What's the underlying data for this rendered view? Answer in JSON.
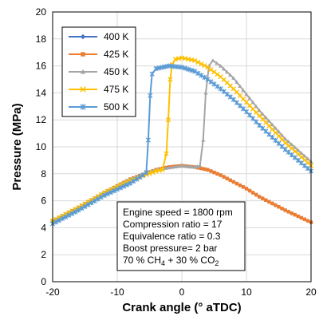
{
  "chart_data": {
    "type": "line",
    "xlabel": "Crank angle (° aTDC)",
    "ylabel": "Pressure (MPa)",
    "xlim": [
      -20,
      20
    ],
    "ylim": [
      0,
      20
    ],
    "xticks": [
      -20,
      -10,
      0,
      10,
      20
    ],
    "yticks": [
      0,
      2,
      4,
      6,
      8,
      10,
      12,
      14,
      16,
      18,
      20
    ],
    "grid": true,
    "legend_position": "top-left",
    "series": [
      {
        "name": "400 K",
        "color": "#4472c4",
        "marker": "diamond",
        "x": [
          -20,
          -16,
          -12,
          -8,
          -4,
          -2,
          0,
          2,
          4,
          6,
          8,
          10,
          12,
          16,
          20
        ],
        "y": [
          4.5,
          5.5,
          6.6,
          7.6,
          8.3,
          8.5,
          8.6,
          8.5,
          8.3,
          7.9,
          7.4,
          6.9,
          6.3,
          5.3,
          4.4
        ]
      },
      {
        "name": "425 K",
        "color": "#ed7d31",
        "marker": "square",
        "x": [
          -20,
          -16,
          -12,
          -8,
          -4,
          -2,
          0,
          2,
          4,
          6,
          8,
          10,
          12,
          16,
          20
        ],
        "y": [
          4.5,
          5.5,
          6.6,
          7.6,
          8.3,
          8.5,
          8.6,
          8.5,
          8.3,
          7.9,
          7.4,
          6.9,
          6.3,
          5.3,
          4.4
        ]
      },
      {
        "name": "450 K",
        "color": "#a5a5a5",
        "marker": "triangle",
        "x": [
          -20,
          -16,
          -12,
          -8,
          -4,
          0,
          2,
          2.8,
          3.3,
          3.7,
          4.2,
          4.8,
          6,
          8,
          10,
          12,
          16,
          20
        ],
        "y": [
          4.5,
          5.5,
          6.6,
          7.6,
          8.3,
          8.6,
          8.5,
          8.6,
          10.5,
          14.0,
          16.0,
          16.4,
          16.0,
          15.1,
          13.9,
          12.7,
          10.6,
          8.9
        ]
      },
      {
        "name": "475 K",
        "color": "#ffc000",
        "marker": "x",
        "x": [
          -20,
          -16,
          -12,
          -8,
          -4,
          -3,
          -2.4,
          -2.1,
          -1.8,
          -1.5,
          -1,
          0,
          2,
          4,
          6,
          8,
          10,
          12,
          16,
          20
        ],
        "y": [
          4.5,
          5.5,
          6.6,
          7.5,
          8.2,
          8.3,
          9.5,
          12.0,
          15.0,
          16.1,
          16.5,
          16.6,
          16.4,
          15.9,
          15.2,
          14.3,
          13.3,
          12.3,
          10.3,
          8.6
        ]
      },
      {
        "name": "500 K",
        "color": "#5b9bd5",
        "marker": "star",
        "x": [
          -20,
          -16,
          -12,
          -8,
          -6,
          -5.5,
          -5.2,
          -4.9,
          -4.6,
          -4,
          -2,
          0,
          2,
          4,
          6,
          8,
          10,
          12,
          16,
          20
        ],
        "y": [
          4.3,
          5.3,
          6.4,
          7.3,
          7.9,
          8.1,
          10.5,
          13.8,
          15.4,
          15.8,
          16.0,
          15.9,
          15.6,
          15.0,
          14.3,
          13.5,
          12.6,
          11.6,
          9.8,
          8.2
        ]
      }
    ],
    "annotation": {
      "lines": [
        "Engine speed = 1800 rpm",
        "Compression ratio = 17",
        "Equivalence ratio = 0.3",
        "Boost pressure= 2 bar"
      ],
      "composition": {
        "a": "70 % CH",
        "a_sub": "4",
        "b": " + 30 % CO",
        "b_sub": "2"
      }
    }
  }
}
